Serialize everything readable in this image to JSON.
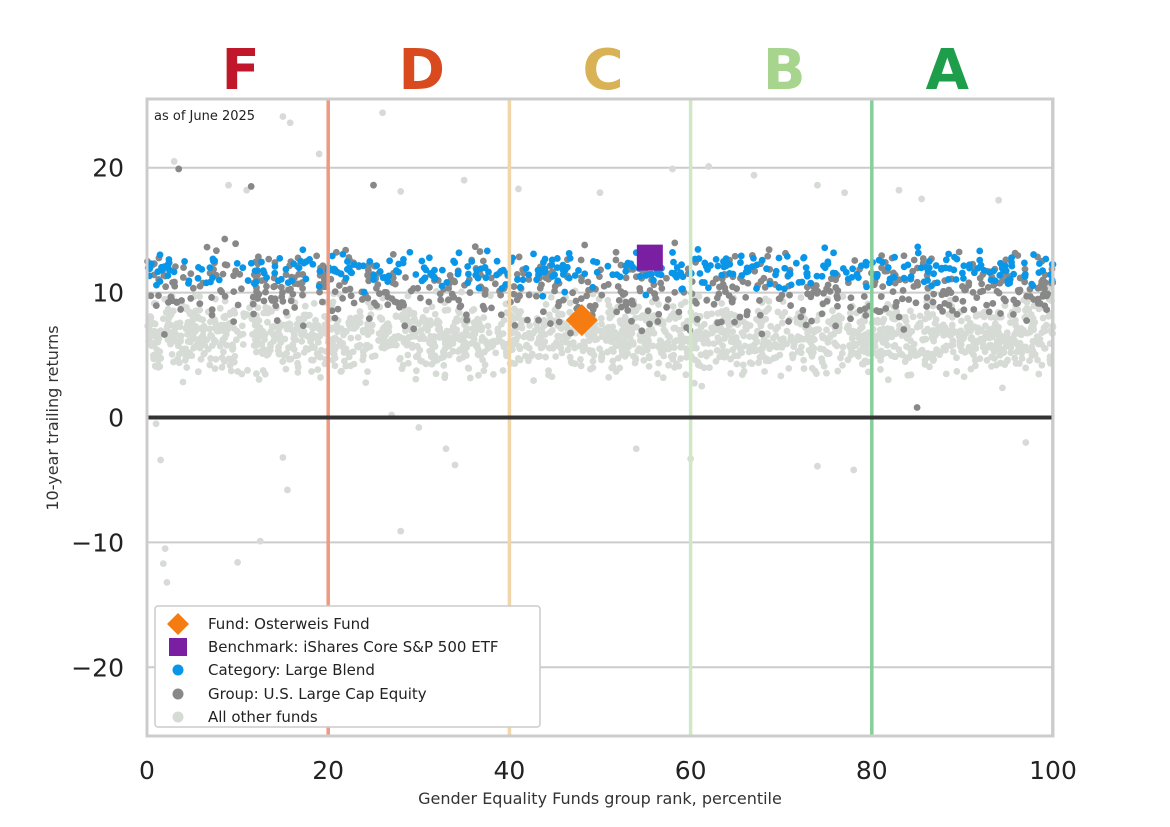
{
  "chart_data": {
    "type": "scatter",
    "grade_labels": [
      {
        "label": "F",
        "color": "#c0182a",
        "x_center": 10
      },
      {
        "label": "D",
        "color": "#d94a1e",
        "x_center": 30
      },
      {
        "label": "C",
        "color": "#d8b255",
        "x_center": 50
      },
      {
        "label": "B",
        "color": "#a8d58e",
        "x_center": 70
      },
      {
        "label": "A",
        "color": "#1e9e4a",
        "x_center": 88
      }
    ],
    "grade_boundaries": [
      {
        "x": 20,
        "color": "#ee9a82"
      },
      {
        "x": 40,
        "color": "#f0d6a8"
      },
      {
        "x": 60,
        "color": "#cfe8c5"
      },
      {
        "x": 80,
        "color": "#86cf9c"
      }
    ],
    "annotation": "as of June 2025",
    "xlabel": "Gender Equality Funds group rank, percentile",
    "ylabel": "10-year trailing returns",
    "xlim": [
      0,
      100
    ],
    "ylim": [
      -25.5,
      25.5
    ],
    "x_ticks": [
      0,
      20,
      40,
      60,
      80,
      100
    ],
    "x_tick_labels": [
      "0",
      "20",
      "40",
      "60",
      "80",
      "100"
    ],
    "y_ticks": [
      20,
      10,
      0,
      -10,
      -20
    ],
    "y_tick_labels": [
      "20",
      "10",
      "0",
      "−10",
      "−20"
    ],
    "grid": "horizontal",
    "zero_line": true,
    "legend_position": "bottom-left",
    "series": [
      {
        "name": "Fund: Osterweis Fund",
        "marker": "diamond",
        "color": "#f47c10",
        "points": [
          [
            48,
            7.8
          ]
        ]
      },
      {
        "name": "Benchmark: iShares Core S&P 500 ETF",
        "marker": "square",
        "color": "#7b1fa2",
        "points": [
          [
            55.5,
            12.8
          ]
        ]
      },
      {
        "name": "Category: Large Blend",
        "marker": "dot",
        "color": "#0a96e8",
        "approx_count": 380,
        "y_center": 11.8,
        "y_spread": 1.3
      },
      {
        "name": "Group: U.S. Large Cap Equity",
        "marker": "dot",
        "color": "#888888",
        "approx_count": 620,
        "y_center": 10.5,
        "y_spread": 2.5
      },
      {
        "name": "All other funds",
        "marker": "dot",
        "color": "#d6dbd6",
        "approx_count": 1900,
        "y_center": 6.5,
        "y_spread": 2.5
      }
    ],
    "outliers_all_other": [
      [
        1,
        -0.5
      ],
      [
        1.5,
        -3.4
      ],
      [
        1.8,
        -11.7
      ],
      [
        2,
        -10.5
      ],
      [
        2.2,
        -13.2
      ],
      [
        10,
        -11.6
      ],
      [
        12.5,
        -9.9
      ],
      [
        15,
        -3.2
      ],
      [
        15.5,
        -5.8
      ],
      [
        28,
        -9.1
      ],
      [
        33,
        -2.5
      ],
      [
        34,
        -3.8
      ],
      [
        30,
        -0.8
      ],
      [
        27,
        0.2
      ],
      [
        54,
        -2.5
      ],
      [
        60,
        -3.3
      ],
      [
        74,
        -3.9
      ],
      [
        78,
        -4.2
      ],
      [
        97,
        -2
      ],
      [
        15,
        24.1
      ],
      [
        15.8,
        23.6
      ],
      [
        19,
        21.1
      ],
      [
        26,
        24.4
      ],
      [
        3,
        20.5
      ],
      [
        28,
        18.1
      ],
      [
        35,
        19.0
      ],
      [
        41,
        18.3
      ],
      [
        50,
        18.0
      ],
      [
        58,
        19.9
      ],
      [
        62,
        20.1
      ],
      [
        67,
        19.4
      ],
      [
        74,
        18.6
      ],
      [
        77,
        18.0
      ],
      [
        83,
        18.2
      ],
      [
        85.5,
        17.5
      ],
      [
        94,
        17.4
      ],
      [
        9,
        18.6
      ],
      [
        11,
        18.2
      ]
    ],
    "outliers_group": [
      [
        85,
        0.8
      ],
      [
        3.5,
        19.9
      ],
      [
        11.5,
        18.5
      ],
      [
        25,
        18.6
      ]
    ]
  }
}
